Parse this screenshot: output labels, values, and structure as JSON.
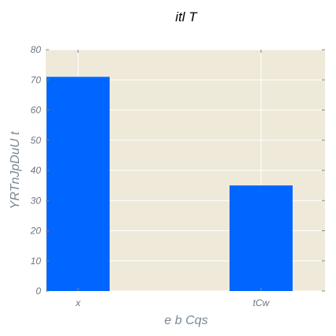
{
  "chart_data": {
    "type": "bar",
    "title": "itl T",
    "xlabel": "e  b Cqs",
    "ylabel": "YRTnJpDuU t",
    "categories": [
      "x",
      "tCw"
    ],
    "values": [
      71,
      35
    ],
    "ylim": [
      0,
      80
    ],
    "yticks": [
      0,
      10,
      20,
      30,
      40,
      50,
      60,
      70,
      80
    ],
    "grid": true,
    "colors": {
      "bar": "#0066ff",
      "background": "#efe9d9",
      "grid": "#ffffff",
      "text": "#6b7580"
    }
  }
}
